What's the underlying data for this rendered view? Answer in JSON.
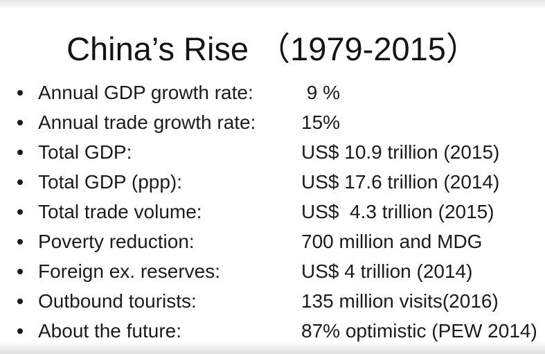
{
  "title": "China’s Rise （1979-2015）",
  "bullets": [
    {
      "label": "Annual GDP growth rate:",
      "value": " 9 %"
    },
    {
      "label": "Annual trade growth rate:",
      "value": "15%"
    },
    {
      "label": "Total GDP:",
      "value": "US$ 10.9 trillion (2015)"
    },
    {
      "label": "Total GDP (ppp):",
      "value": "US$ 17.6 trillion (2014)"
    },
    {
      "label": "Total trade volume:",
      "value": "US$  4.3 trillion (2015)"
    },
    {
      "label": "Poverty reduction:",
      "value": "700 million and MDG"
    },
    {
      "label": "Foreign ex. reserves:",
      "value": "US$ 4 trillion (2014)"
    },
    {
      "label": "Outbound tourists:",
      "value": "135 million visits(2016)"
    },
    {
      "label": "About the future:",
      "value": "87% optimistic (PEW 2014)"
    }
  ],
  "colors": {
    "text": "#1b1b1b",
    "background": "#ffffff",
    "edge_gray": "#e0e0e0"
  }
}
